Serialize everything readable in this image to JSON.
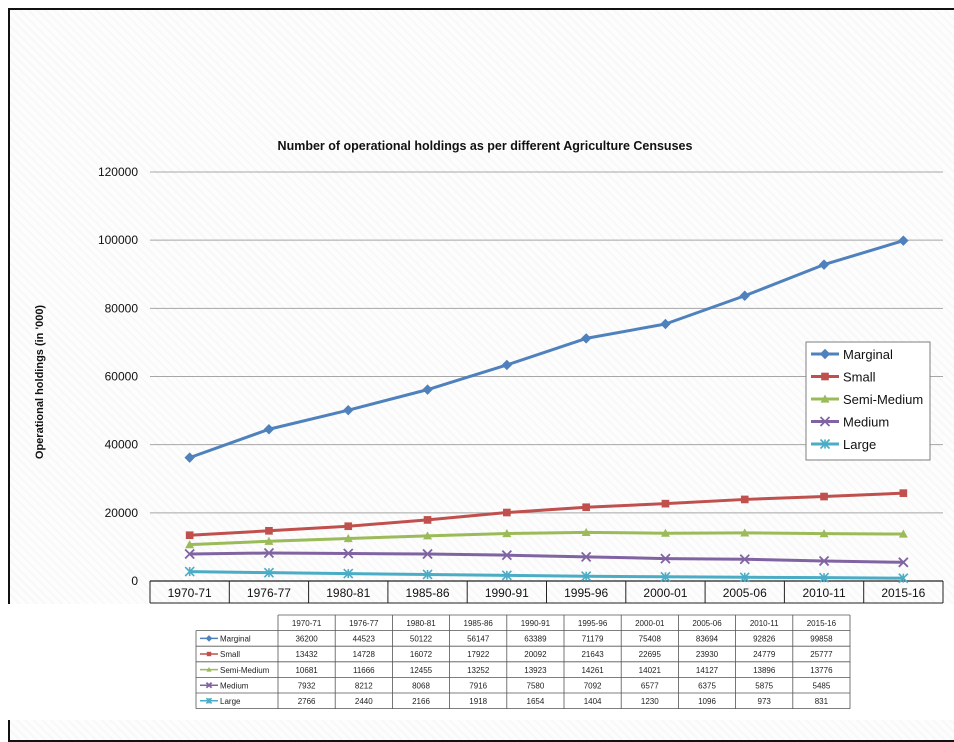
{
  "chart_data": {
    "type": "line",
    "title": "Number of operational holdings as per different Agriculture Censuses",
    "xlabel": "",
    "ylabel": "Operational holdings (in '000)",
    "ylim": [
      0,
      120000
    ],
    "y_ticks": [
      "0",
      "20000",
      "40000",
      "60000",
      "80000",
      "100000",
      "120000"
    ],
    "grid": "horizontal",
    "legend_position": "right",
    "categories": [
      "1970-71",
      "1976-77",
      "1980-81",
      "1985-86",
      "1990-91",
      "1995-96",
      "2000-01",
      "2005-06",
      "2010-11",
      "2015-16"
    ],
    "series": [
      {
        "name": "Marginal",
        "color": "#4f81bd",
        "marker": "diamond",
        "values": [
          36200,
          44523,
          50122,
          56147,
          63389,
          71179,
          75408,
          83694,
          92826,
          99858
        ],
        "labels": [
          "36200",
          "44523",
          "50122",
          "56147",
          "63389",
          "71179",
          "75408",
          "83694",
          "92826",
          "99858"
        ]
      },
      {
        "name": "Small",
        "color": "#c0504d",
        "marker": "square",
        "values": [
          13432,
          14728,
          16072,
          17922,
          20092,
          21643,
          22695,
          23930,
          24779,
          25777
        ],
        "labels": [
          "13432",
          "14728",
          "16072",
          "17922",
          "20092",
          "21643",
          "22695",
          "23930",
          "24779",
          "25777"
        ]
      },
      {
        "name": "Semi-Medium",
        "color": "#9bbb59",
        "marker": "triangle",
        "values": [
          10681,
          11666,
          12455,
          13252,
          13923,
          14261,
          14021,
          14127,
          13896,
          13776
        ],
        "labels": [
          "10681",
          "11666",
          "12455",
          "13252",
          "13923",
          "14261",
          "14021",
          "14127",
          "13896",
          "13776"
        ]
      },
      {
        "name": "Medium",
        "color": "#8064a2",
        "marker": "x",
        "values": [
          7932,
          8212,
          8068,
          7916,
          7580,
          7092,
          6577,
          6375,
          5875,
          5485
        ],
        "labels": [
          "7932",
          "8212",
          "8068",
          "7916",
          "7580",
          "7092",
          "6577",
          "6375",
          "5875",
          "5485"
        ]
      },
      {
        "name": "Large",
        "color": "#4bacc6",
        "marker": "star",
        "values": [
          2766,
          2440,
          2166,
          1918,
          1654,
          1404,
          1230,
          1096,
          973,
          831
        ],
        "labels": [
          "2766",
          "2440",
          "2166",
          "1918",
          "1654",
          "1404",
          "1230",
          "1096",
          "973",
          "831"
        ]
      }
    ]
  }
}
